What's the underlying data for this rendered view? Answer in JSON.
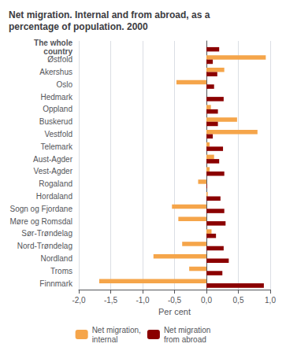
{
  "chart_data": {
    "type": "bar",
    "orientation": "horizontal",
    "title": "Net migration. Internal and from abroad, as a\npercentage of population. 2000",
    "xlabel": "Per cent",
    "categories": [
      "The whole\ncountry",
      "Østfold",
      "Akershus",
      "Oslo",
      "Hedmark",
      "Oppland",
      "Buskerud",
      "Vestfold",
      "Telemark",
      "Aust-Agder",
      "Vest-Agder",
      "Rogaland",
      "Hordaland",
      "Sogn og Fjordane",
      "Møre og Romsdal",
      "Sør-Trøndelag",
      "Nord-Trøndelag",
      "Nordland",
      "Troms",
      "Finnmark"
    ],
    "series": [
      {
        "name": "Net migration,\ninternal",
        "color": "#f5a54a",
        "values": [
          0.0,
          0.93,
          0.28,
          -0.47,
          0.0,
          0.07,
          0.48,
          0.8,
          0.05,
          0.12,
          0.05,
          -0.13,
          0.02,
          -0.54,
          -0.44,
          0.08,
          -0.38,
          -0.83,
          -0.27,
          -1.68
        ]
      },
      {
        "name": "Net migration\nfrom abroad",
        "color": "#8b0000",
        "values": [
          0.2,
          0.1,
          0.17,
          0.12,
          0.27,
          0.18,
          0.18,
          0.1,
          0.26,
          0.2,
          0.28,
          0.01,
          0.22,
          0.28,
          0.3,
          0.15,
          0.27,
          0.35,
          0.25,
          0.9
        ]
      }
    ],
    "xlim": [
      -2.0,
      1.0
    ],
    "xticks": [
      {
        "value": -2.0,
        "label": "-2,0"
      },
      {
        "value": -1.5,
        "label": "-1,5"
      },
      {
        "value": -1.0,
        "label": "-1,0"
      },
      {
        "value": -0.5,
        "label": "-0,5"
      },
      {
        "value": 0.0,
        "label": "0,0"
      },
      {
        "value": 0.5,
        "label": "0,5"
      },
      {
        "value": 1.0,
        "label": "1,0"
      }
    ],
    "grid": true,
    "legend": "bottom"
  }
}
